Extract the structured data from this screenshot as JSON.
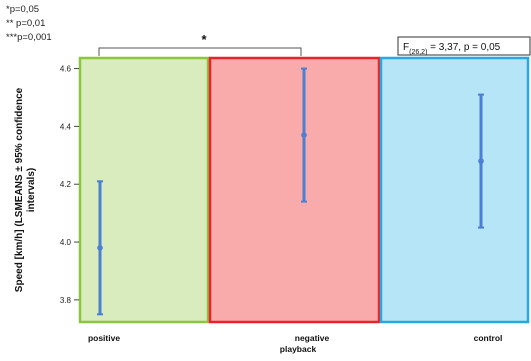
{
  "significance_legend": [
    "*p=0,05",
    "** p=0,01",
    "***p=0,001"
  ],
  "chart_data": {
    "type": "scatter",
    "subtype": "error-bar",
    "title": "",
    "xlabel": "playback",
    "ylabel": "Speed [km/h] (LSMEANS ± 95% confidence intervals)",
    "ylabel_lines": [
      "Speed [km/h] (LSMEANS ± 95% confidence",
      "intervals)"
    ],
    "ylim": [
      3.72,
      4.64
    ],
    "yticks": [
      3.8,
      4.0,
      4.2,
      4.4,
      4.6
    ],
    "ytick_labels": [
      "3.8",
      "4.0",
      "4.2",
      "4.4",
      "4.6"
    ],
    "grid": false,
    "categories": [
      "positive",
      "negative",
      "control"
    ],
    "means": [
      3.98,
      4.37,
      4.28
    ],
    "ci_lower": [
      3.75,
      4.14,
      4.05
    ],
    "ci_upper": [
      4.21,
      4.6,
      4.51
    ],
    "band_fill_colors": [
      "#d8ecbd",
      "#f9abab",
      "#b5e5f7"
    ],
    "band_border_colors": [
      "#8cc63f",
      "#e8242a",
      "#29a8e0"
    ],
    "errorbar_color": "#4a7fd4",
    "stat_annotation": {
      "prefix": "F",
      "subscript": "(26,2)",
      "text": " = 3,37, p = 0,05"
    },
    "significance_bracket": {
      "from": "positive",
      "to": "negative",
      "label": "*"
    }
  }
}
